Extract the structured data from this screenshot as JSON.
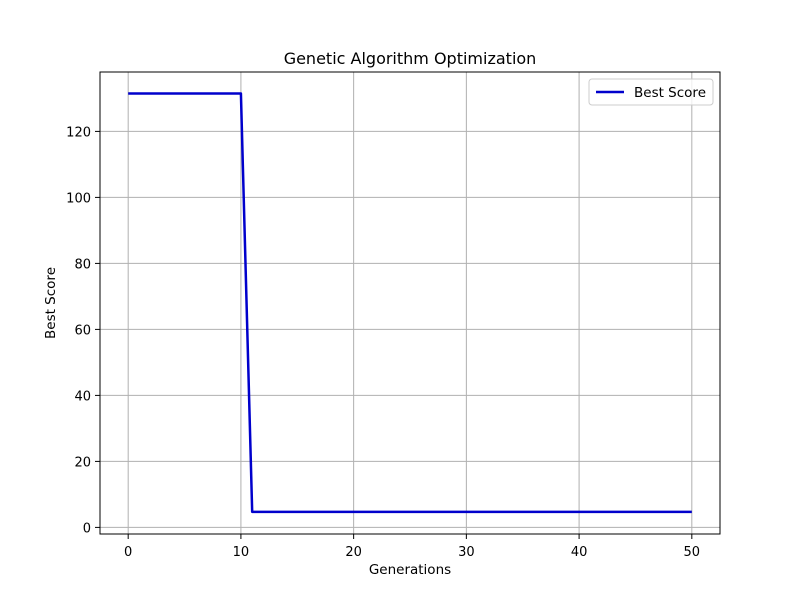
{
  "chart_data": {
    "type": "line",
    "title": "Genetic Algorithm Optimization",
    "xlabel": "Generations",
    "ylabel": "Best Score",
    "xlim": [
      -2.5,
      52.5
    ],
    "ylim": [
      -2,
      138
    ],
    "xticks": [
      0,
      10,
      20,
      30,
      40,
      50
    ],
    "yticks": [
      0,
      20,
      40,
      60,
      80,
      100,
      120
    ],
    "grid": true,
    "legend_position": "top-right",
    "series": [
      {
        "name": "Best Score",
        "color": "#0000cc",
        "x": [
          0,
          1,
          2,
          3,
          4,
          5,
          6,
          7,
          8,
          9,
          10,
          11,
          12,
          13,
          14,
          15,
          16,
          17,
          18,
          19,
          20,
          21,
          22,
          23,
          24,
          25,
          26,
          27,
          28,
          29,
          30,
          31,
          32,
          33,
          34,
          35,
          36,
          37,
          38,
          39,
          40,
          41,
          42,
          43,
          44,
          45,
          46,
          47,
          48,
          49,
          50
        ],
        "y": [
          131.5,
          131.5,
          131.5,
          131.5,
          131.5,
          131.5,
          131.5,
          131.5,
          131.5,
          131.5,
          131.5,
          4.7,
          4.7,
          4.7,
          4.7,
          4.7,
          4.7,
          4.7,
          4.7,
          4.7,
          4.7,
          4.7,
          4.7,
          4.7,
          4.7,
          4.7,
          4.7,
          4.7,
          4.7,
          4.7,
          4.7,
          4.7,
          4.7,
          4.7,
          4.7,
          4.7,
          4.7,
          4.7,
          4.7,
          4.7,
          4.7,
          4.7,
          4.7,
          4.7,
          4.7,
          4.7,
          4.7,
          4.7,
          4.7,
          4.7,
          4.7
        ]
      }
    ]
  }
}
